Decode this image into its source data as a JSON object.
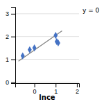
{
  "chart_data": {
    "type": "scatter",
    "xlabel": "lnce",
    "annotation": "y = 0",
    "series": [
      {
        "type": "line",
        "x": [
          -0.75,
          1.3
        ],
        "values": [
          0.92,
          2.25
        ],
        "color": "#808080",
        "line_style": "solid"
      },
      {
        "type": "scatter",
        "x": [
          -0.55,
          -0.22,
          0.0,
          1.0,
          1.05,
          1.12
        ],
        "values": [
          1.15,
          1.42,
          1.5,
          2.05,
          1.78,
          1.72
        ],
        "color": "#4472c4",
        "marker": "diamond"
      }
    ],
    "xlim": [
      -0.9,
      2.1
    ],
    "ylim": [
      -0.05,
      3.3
    ],
    "xticks": [
      0,
      1,
      2
    ],
    "yticks": [
      0,
      1,
      2,
      3
    ],
    "grid": "y"
  }
}
